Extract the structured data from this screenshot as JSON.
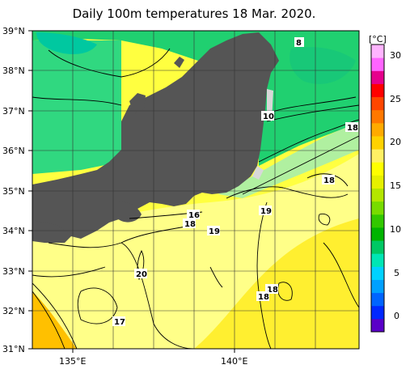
{
  "title": "Daily 100m temperatures 18 Mar. 2020.",
  "lat_labels": [
    "39°N",
    "38°N",
    "37°N",
    "36°N",
    "35°N",
    "34°N",
    "33°N",
    "32°N",
    "31°N"
  ],
  "lon_labels": [
    "135°E",
    "140°E"
  ],
  "contour_labels": [
    "8",
    "10",
    "18",
    "18",
    "19",
    "16",
    "18",
    "19",
    "20",
    "18",
    "18",
    "17"
  ],
  "colorbar": {
    "unit": "[°C]",
    "tick_labels": [
      "30",
      "25",
      "20",
      "15",
      "10",
      "5",
      "0"
    ],
    "colors": [
      "#5a00c8",
      "#0028ff",
      "#0064ff",
      "#00a0ff",
      "#00d2ff",
      "#00e6b4",
      "#00c864",
      "#00b400",
      "#32c800",
      "#78dc00",
      "#b4e600",
      "#e6f000",
      "#ffff00",
      "#fff064",
      "#ffd200",
      "#ffaa00",
      "#ff7800",
      "#ff4600",
      "#ff0000",
      "#e6008c",
      "#ff64ff",
      "#ffb4ff"
    ]
  }
}
